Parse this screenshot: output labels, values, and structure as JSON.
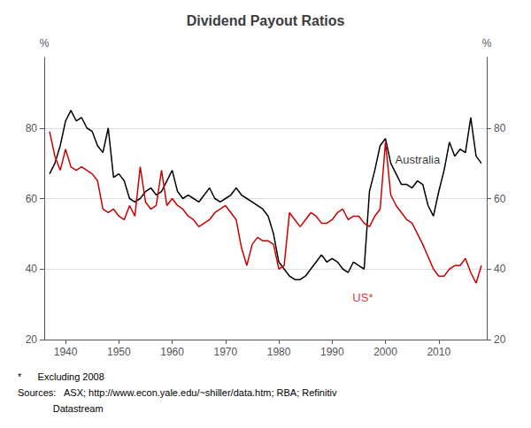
{
  "chart_data": {
    "type": "line",
    "title": "Dividend Payout Ratios",
    "ylabel_left": "%",
    "ylabel_right": "%",
    "xlim": [
      1936,
      2019
    ],
    "xticks": [
      1940,
      1950,
      1960,
      1970,
      1980,
      1990,
      2000,
      2010
    ],
    "ylim": [
      20,
      100
    ],
    "yticks": [
      20,
      40,
      60,
      80
    ],
    "y2lim": [
      20,
      100
    ],
    "y2ticks": [
      20,
      40,
      60,
      80
    ],
    "grid": true,
    "series": [
      {
        "name": "Australia",
        "color": "#000000",
        "x": [
          1937,
          1938,
          1939,
          1940,
          1941,
          1942,
          1943,
          1944,
          1945,
          1946,
          1947,
          1948,
          1949,
          1950,
          1951,
          1952,
          1953,
          1954,
          1955,
          1956,
          1957,
          1958,
          1959,
          1960,
          1961,
          1962,
          1963,
          1964,
          1965,
          1966,
          1967,
          1968,
          1969,
          1970,
          1971,
          1972,
          1973,
          1974,
          1975,
          1976,
          1977,
          1978,
          1979,
          1980,
          1981,
          1982,
          1983,
          1984,
          1985,
          1986,
          1987,
          1988,
          1989,
          1990,
          1991,
          1992,
          1993,
          1994,
          1995,
          1996,
          1997,
          1998,
          1999,
          2000,
          2001,
          2002,
          2003,
          2004,
          2005,
          2006,
          2007,
          2008,
          2009,
          2010,
          2011,
          2012,
          2013,
          2014,
          2015,
          2016,
          2017,
          2018
        ],
        "values": [
          67,
          70,
          75,
          82,
          85,
          82,
          83,
          80,
          79,
          75,
          73,
          80,
          66,
          67,
          65,
          60,
          59,
          60,
          62,
          63,
          61,
          62,
          65,
          68,
          62,
          60,
          61,
          60,
          59,
          61,
          63,
          60,
          59,
          60,
          61,
          63,
          61,
          60,
          59,
          58,
          57,
          55,
          50,
          42,
          40,
          38,
          37,
          37,
          38,
          40,
          42,
          44,
          42,
          43,
          42,
          40,
          39,
          42,
          41,
          40,
          62,
          68,
          75,
          77,
          70,
          67,
          64,
          64,
          63,
          65,
          64,
          58,
          55,
          62,
          68,
          76,
          72,
          74,
          73,
          83,
          72,
          70
        ]
      },
      {
        "name": "US*",
        "color": "#cc0000",
        "x": [
          1937,
          1938,
          1939,
          1940,
          1941,
          1942,
          1943,
          1944,
          1945,
          1946,
          1947,
          1948,
          1949,
          1950,
          1951,
          1952,
          1953,
          1954,
          1955,
          1956,
          1957,
          1958,
          1959,
          1960,
          1961,
          1962,
          1963,
          1964,
          1965,
          1966,
          1967,
          1968,
          1969,
          1970,
          1971,
          1972,
          1973,
          1974,
          1975,
          1976,
          1977,
          1978,
          1979,
          1980,
          1981,
          1982,
          1983,
          1984,
          1985,
          1986,
          1987,
          1988,
          1989,
          1990,
          1991,
          1992,
          1993,
          1994,
          1995,
          1996,
          1997,
          1998,
          1999,
          2000,
          2001,
          2002,
          2003,
          2004,
          2005,
          2006,
          2007,
          2009,
          2010,
          2011,
          2012,
          2013,
          2014,
          2015,
          2016,
          2017,
          2018
        ],
        "values": [
          79,
          72,
          68,
          74,
          69,
          68,
          69,
          68,
          67,
          65,
          57,
          56,
          57,
          55,
          54,
          58,
          55,
          69,
          59,
          57,
          58,
          68,
          58,
          60,
          58,
          57,
          55,
          54,
          52,
          53,
          54,
          56,
          57,
          58,
          56,
          54,
          46,
          41,
          47,
          49,
          48,
          48,
          47,
          40,
          41,
          56,
          54,
          52,
          54,
          56,
          55,
          53,
          53,
          54,
          56,
          57,
          54,
          55,
          55,
          53,
          52,
          55,
          57,
          76,
          61,
          58,
          56,
          54,
          53,
          50,
          47,
          40,
          38,
          38,
          40,
          41,
          41,
          43,
          39,
          36,
          41
        ]
      }
    ],
    "annotations": [
      {
        "text": "Australia",
        "x": 2001,
        "y": 71,
        "color": "#000000"
      },
      {
        "text": "US*",
        "x": 1993,
        "y": 32,
        "color": "#cc0000"
      }
    ],
    "footnotes": [
      "*      Excluding 2008",
      "Sources:   ASX; http://www.econ.yale.edu/~shiller/data.htm; RBA; Refinitiv",
      "             Datastream"
    ]
  }
}
